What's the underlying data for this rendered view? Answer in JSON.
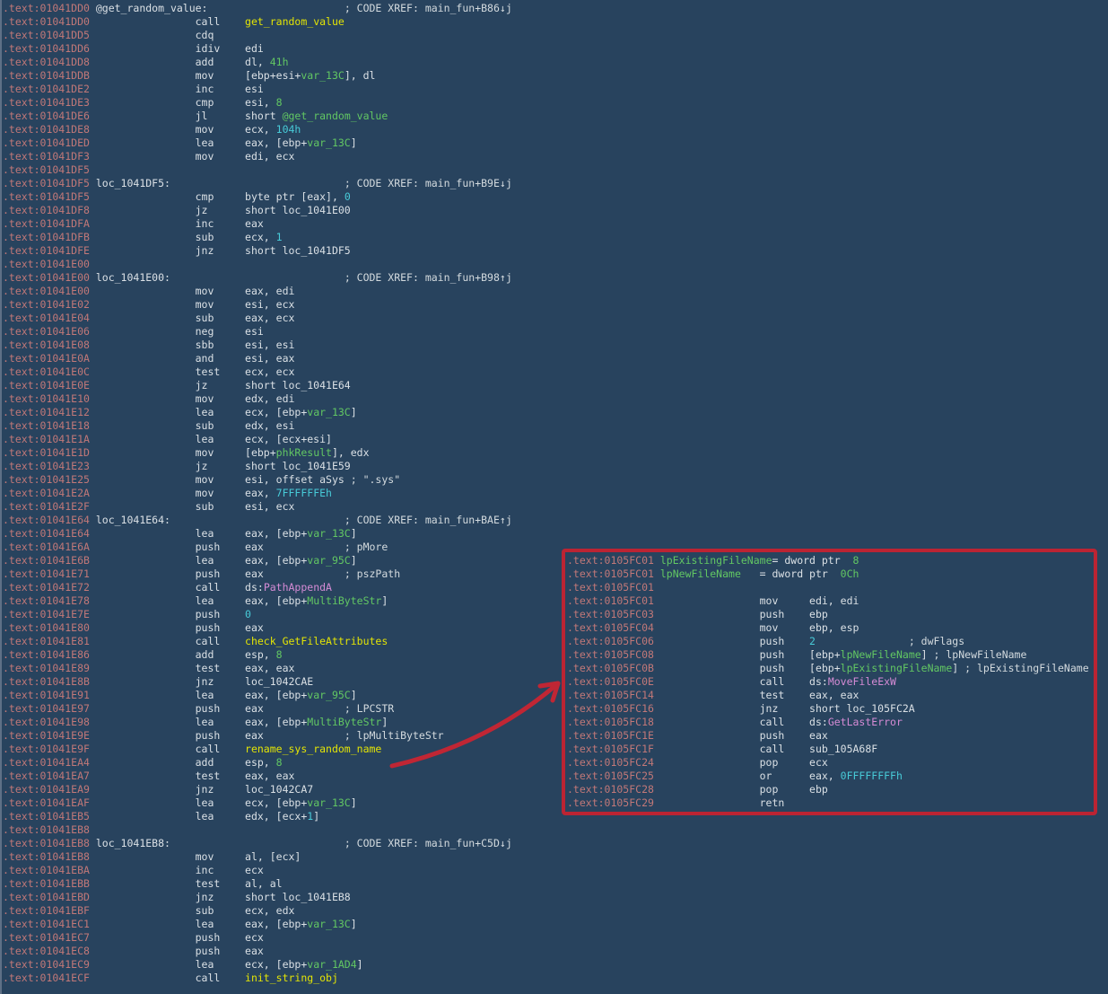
{
  "colors": {
    "background": "#28435e",
    "address": "#c17878",
    "default_text": "#dae0e5",
    "comment": "#d3dade",
    "function_name_yellow": "#e3e405",
    "local_name_green": "#62c763",
    "number_cyan": "#48cbd8",
    "import_name_pink": "#d58bd5",
    "annotation_red": "#bb2433",
    "gutter_gray": "#5e7086"
  },
  "main_listing": {
    "lines": [
      [
        [
          "a",
          ".text:01041DD0"
        ],
        [
          "d",
          " @get_random_value:                      "
        ],
        [
          "c",
          "; CODE XREF: main_fun+B86↓j"
        ]
      ],
      [
        [
          "a",
          ".text:01041DD0"
        ],
        [
          "d",
          "                 call    "
        ],
        [
          "y",
          "get_random_value"
        ]
      ],
      [
        [
          "a",
          ".text:01041DD5"
        ],
        [
          "d",
          "                 cdq"
        ]
      ],
      [
        [
          "a",
          ".text:01041DD6"
        ],
        [
          "d",
          "                 idiv    edi"
        ]
      ],
      [
        [
          "a",
          ".text:01041DD8"
        ],
        [
          "d",
          "                 add     dl, "
        ],
        [
          "g",
          "41h"
        ]
      ],
      [
        [
          "a",
          ".text:01041DDB"
        ],
        [
          "d",
          "                 mov     [ebp+esi+"
        ],
        [
          "g",
          "var_13C"
        ],
        [
          "d",
          "], dl"
        ]
      ],
      [
        [
          "a",
          ".text:01041DE2"
        ],
        [
          "d",
          "                 inc     esi"
        ]
      ],
      [
        [
          "a",
          ".text:01041DE3"
        ],
        [
          "d",
          "                 cmp     esi, "
        ],
        [
          "g",
          "8"
        ]
      ],
      [
        [
          "a",
          ".text:01041DE6"
        ],
        [
          "d",
          "                 jl      short "
        ],
        [
          "g",
          "@get_random_value"
        ]
      ],
      [
        [
          "a",
          ".text:01041DE8"
        ],
        [
          "d",
          "                 mov     ecx, "
        ],
        [
          "n",
          "104h"
        ]
      ],
      [
        [
          "a",
          ".text:01041DED"
        ],
        [
          "d",
          "                 lea     eax, [ebp+"
        ],
        [
          "g",
          "var_13C"
        ],
        [
          "d",
          "]"
        ]
      ],
      [
        [
          "a",
          ".text:01041DF3"
        ],
        [
          "d",
          "                 mov     edi, ecx"
        ]
      ],
      [
        [
          "a",
          ".text:01041DF5"
        ]
      ],
      [
        [
          "a",
          ".text:01041DF5"
        ],
        [
          "d",
          " loc_1041DF5:                            "
        ],
        [
          "c",
          "; CODE XREF: main_fun+B9E↓j"
        ]
      ],
      [
        [
          "a",
          ".text:01041DF5"
        ],
        [
          "d",
          "                 cmp     byte ptr [eax], "
        ],
        [
          "n",
          "0"
        ]
      ],
      [
        [
          "a",
          ".text:01041DF8"
        ],
        [
          "d",
          "                 jz      short loc_1041E00"
        ]
      ],
      [
        [
          "a",
          ".text:01041DFA"
        ],
        [
          "d",
          "                 inc     eax"
        ]
      ],
      [
        [
          "a",
          ".text:01041DFB"
        ],
        [
          "d",
          "                 sub     ecx, "
        ],
        [
          "n",
          "1"
        ]
      ],
      [
        [
          "a",
          ".text:01041DFE"
        ],
        [
          "d",
          "                 jnz     short loc_1041DF5"
        ]
      ],
      [
        [
          "a",
          ".text:01041E00"
        ]
      ],
      [
        [
          "a",
          ".text:01041E00"
        ],
        [
          "d",
          " loc_1041E00:                            "
        ],
        [
          "c",
          "; CODE XREF: main_fun+B98↑j"
        ]
      ],
      [
        [
          "a",
          ".text:01041E00"
        ],
        [
          "d",
          "                 mov     eax, edi"
        ]
      ],
      [
        [
          "a",
          ".text:01041E02"
        ],
        [
          "d",
          "                 mov     esi, ecx"
        ]
      ],
      [
        [
          "a",
          ".text:01041E04"
        ],
        [
          "d",
          "                 sub     eax, ecx"
        ]
      ],
      [
        [
          "a",
          ".text:01041E06"
        ],
        [
          "d",
          "                 neg     esi"
        ]
      ],
      [
        [
          "a",
          ".text:01041E08"
        ],
        [
          "d",
          "                 sbb     esi, esi"
        ]
      ],
      [
        [
          "a",
          ".text:01041E0A"
        ],
        [
          "d",
          "                 and     esi, eax"
        ]
      ],
      [
        [
          "a",
          ".text:01041E0C"
        ],
        [
          "d",
          "                 test    ecx, ecx"
        ]
      ],
      [
        [
          "a",
          ".text:01041E0E"
        ],
        [
          "d",
          "                 jz      short loc_1041E64"
        ]
      ],
      [
        [
          "a",
          ".text:01041E10"
        ],
        [
          "d",
          "                 mov     edx, edi"
        ]
      ],
      [
        [
          "a",
          ".text:01041E12"
        ],
        [
          "d",
          "                 lea     ecx, [ebp+"
        ],
        [
          "g",
          "var_13C"
        ],
        [
          "d",
          "]"
        ]
      ],
      [
        [
          "a",
          ".text:01041E18"
        ],
        [
          "d",
          "                 sub     edx, esi"
        ]
      ],
      [
        [
          "a",
          ".text:01041E1A"
        ],
        [
          "d",
          "                 lea     ecx, [ecx+esi]"
        ]
      ],
      [
        [
          "a",
          ".text:01041E1D"
        ],
        [
          "d",
          "                 mov     [ebp+"
        ],
        [
          "g",
          "phkResult"
        ],
        [
          "d",
          "], edx"
        ]
      ],
      [
        [
          "a",
          ".text:01041E23"
        ],
        [
          "d",
          "                 jz      short loc_1041E59"
        ]
      ],
      [
        [
          "a",
          ".text:01041E25"
        ],
        [
          "d",
          "                 mov     esi, offset aSys "
        ],
        [
          "c",
          "; \".sys\""
        ]
      ],
      [
        [
          "a",
          ".text:01041E2A"
        ],
        [
          "d",
          "                 mov     eax, "
        ],
        [
          "n",
          "7FFFFFFEh"
        ]
      ],
      [
        [
          "a",
          ".text:01041E2F"
        ],
        [
          "d",
          "                 sub     esi, ecx"
        ]
      ],
      [
        [
          "a",
          ".text:01041E64"
        ],
        [
          "d",
          " loc_1041E64:                            "
        ],
        [
          "c",
          "; CODE XREF: main_fun+BAE↑j"
        ]
      ],
      [
        [
          "a",
          ".text:01041E64"
        ],
        [
          "d",
          "                 lea     eax, [ebp+"
        ],
        [
          "g",
          "var_13C"
        ],
        [
          "d",
          "]"
        ]
      ],
      [
        [
          "a",
          ".text:01041E6A"
        ],
        [
          "d",
          "                 push    eax             "
        ],
        [
          "c",
          "; pMore"
        ]
      ],
      [
        [
          "a",
          ".text:01041E6B"
        ],
        [
          "d",
          "                 lea     eax, [ebp+"
        ],
        [
          "g",
          "var_95C"
        ],
        [
          "d",
          "]"
        ]
      ],
      [
        [
          "a",
          ".text:01041E71"
        ],
        [
          "d",
          "                 push    eax             "
        ],
        [
          "c",
          "; pszPath"
        ]
      ],
      [
        [
          "a",
          ".text:01041E72"
        ],
        [
          "d",
          "                 call    ds:"
        ],
        [
          "p",
          "PathAppendA"
        ]
      ],
      [
        [
          "a",
          ".text:01041E78"
        ],
        [
          "d",
          "                 lea     eax, [ebp+"
        ],
        [
          "g",
          "MultiByteStr"
        ],
        [
          "d",
          "]"
        ]
      ],
      [
        [
          "a",
          ".text:01041E7E"
        ],
        [
          "d",
          "                 push    "
        ],
        [
          "n",
          "0"
        ]
      ],
      [
        [
          "a",
          ".text:01041E80"
        ],
        [
          "d",
          "                 push    eax"
        ]
      ],
      [
        [
          "a",
          ".text:01041E81"
        ],
        [
          "d",
          "                 call    "
        ],
        [
          "y",
          "check_GetFileAttributes"
        ]
      ],
      [
        [
          "a",
          ".text:01041E86"
        ],
        [
          "d",
          "                 add     esp, "
        ],
        [
          "g",
          "8"
        ]
      ],
      [
        [
          "a",
          ".text:01041E89"
        ],
        [
          "d",
          "                 test    eax, eax"
        ]
      ],
      [
        [
          "a",
          ".text:01041E8B"
        ],
        [
          "d",
          "                 jnz     loc_1042CAE"
        ]
      ],
      [
        [
          "a",
          ".text:01041E91"
        ],
        [
          "d",
          "                 lea     eax, [ebp+"
        ],
        [
          "g",
          "var_95C"
        ],
        [
          "d",
          "]"
        ]
      ],
      [
        [
          "a",
          ".text:01041E97"
        ],
        [
          "d",
          "                 push    eax             "
        ],
        [
          "c",
          "; LPCSTR"
        ]
      ],
      [
        [
          "a",
          ".text:01041E98"
        ],
        [
          "d",
          "                 lea     eax, [ebp+"
        ],
        [
          "g",
          "MultiByteStr"
        ],
        [
          "d",
          "]"
        ]
      ],
      [
        [
          "a",
          ".text:01041E9E"
        ],
        [
          "d",
          "                 push    eax             "
        ],
        [
          "c",
          "; lpMultiByteStr"
        ]
      ],
      [
        [
          "a",
          ".text:01041E9F"
        ],
        [
          "d",
          "                 call    "
        ],
        [
          "y",
          "rename_sys_random_name"
        ]
      ],
      [
        [
          "a",
          ".text:01041EA4"
        ],
        [
          "d",
          "                 add     esp, "
        ],
        [
          "g",
          "8"
        ]
      ],
      [
        [
          "a",
          ".text:01041EA7"
        ],
        [
          "d",
          "                 test    eax, eax"
        ]
      ],
      [
        [
          "a",
          ".text:01041EA9"
        ],
        [
          "d",
          "                 jnz     loc_1042CA7"
        ]
      ],
      [
        [
          "a",
          ".text:01041EAF"
        ],
        [
          "d",
          "                 lea     ecx, [ebp+"
        ],
        [
          "g",
          "var_13C"
        ],
        [
          "d",
          "]"
        ]
      ],
      [
        [
          "a",
          ".text:01041EB5"
        ],
        [
          "d",
          "                 lea     edx, [ecx+"
        ],
        [
          "n",
          "1"
        ],
        [
          "d",
          "]"
        ]
      ],
      [
        [
          "a",
          ".text:01041EB8"
        ]
      ],
      [
        [
          "a",
          ".text:01041EB8"
        ],
        [
          "d",
          " loc_1041EB8:                            "
        ],
        [
          "c",
          "; CODE XREF: main_fun+C5D↓j"
        ]
      ],
      [
        [
          "a",
          ".text:01041EB8"
        ],
        [
          "d",
          "                 mov     al, [ecx]"
        ]
      ],
      [
        [
          "a",
          ".text:01041EBA"
        ],
        [
          "d",
          "                 inc     ecx"
        ]
      ],
      [
        [
          "a",
          ".text:01041EBB"
        ],
        [
          "d",
          "                 test    al, al"
        ]
      ],
      [
        [
          "a",
          ".text:01041EBD"
        ],
        [
          "d",
          "                 jnz     short loc_1041EB8"
        ]
      ],
      [
        [
          "a",
          ".text:01041EBF"
        ],
        [
          "d",
          "                 sub     ecx, edx"
        ]
      ],
      [
        [
          "a",
          ".text:01041EC1"
        ],
        [
          "d",
          "                 lea     eax, [ebp+"
        ],
        [
          "g",
          "var_13C"
        ],
        [
          "d",
          "]"
        ]
      ],
      [
        [
          "a",
          ".text:01041EC7"
        ],
        [
          "d",
          "                 push    ecx"
        ]
      ],
      [
        [
          "a",
          ".text:01041EC8"
        ],
        [
          "d",
          "                 push    eax"
        ]
      ],
      [
        [
          "a",
          ".text:01041EC9"
        ],
        [
          "d",
          "                 lea     ecx, [ebp+"
        ],
        [
          "g",
          "var_1AD4"
        ],
        [
          "d",
          "]"
        ]
      ],
      [
        [
          "a",
          ".text:01041ECF"
        ],
        [
          "d",
          "                 call    "
        ],
        [
          "y",
          "init_string_obj"
        ]
      ]
    ]
  },
  "inset_listing": {
    "lines": [
      [
        [
          "a",
          ".text:0105FC01"
        ],
        [
          "d",
          " "
        ],
        [
          "g",
          "lpExistingFileName"
        ],
        [
          "d",
          "= dword ptr  "
        ],
        [
          "g",
          "8"
        ]
      ],
      [
        [
          "a",
          ".text:0105FC01"
        ],
        [
          "d",
          " "
        ],
        [
          "g",
          "lpNewFileName"
        ],
        [
          "d",
          "   = dword ptr  "
        ],
        [
          "g",
          "0Ch"
        ]
      ],
      [
        [
          "a",
          ".text:0105FC01"
        ]
      ],
      [
        [
          "a",
          ".text:0105FC01"
        ],
        [
          "d",
          "                 mov     edi, edi"
        ]
      ],
      [
        [
          "a",
          ".text:0105FC03"
        ],
        [
          "d",
          "                 push    ebp"
        ]
      ],
      [
        [
          "a",
          ".text:0105FC04"
        ],
        [
          "d",
          "                 mov     ebp, esp"
        ]
      ],
      [
        [
          "a",
          ".text:0105FC06"
        ],
        [
          "d",
          "                 push    "
        ],
        [
          "n",
          "2"
        ],
        [
          "d",
          "               "
        ],
        [
          "c",
          "; dwFlags"
        ]
      ],
      [
        [
          "a",
          ".text:0105FC08"
        ],
        [
          "d",
          "                 push    [ebp+"
        ],
        [
          "g",
          "lpNewFileName"
        ],
        [
          "d",
          "] "
        ],
        [
          "c",
          "; lpNewFileName"
        ]
      ],
      [
        [
          "a",
          ".text:0105FC0B"
        ],
        [
          "d",
          "                 push    [ebp+"
        ],
        [
          "g",
          "lpExistingFileName"
        ],
        [
          "d",
          "] "
        ],
        [
          "c",
          "; lpExistingFileName"
        ]
      ],
      [
        [
          "a",
          ".text:0105FC0E"
        ],
        [
          "d",
          "                 call    ds:"
        ],
        [
          "p",
          "MoveFileExW"
        ]
      ],
      [
        [
          "a",
          ".text:0105FC14"
        ],
        [
          "d",
          "                 test    eax, eax"
        ]
      ],
      [
        [
          "a",
          ".text:0105FC16"
        ],
        [
          "d",
          "                 jnz     short loc_105FC2A"
        ]
      ],
      [
        [
          "a",
          ".text:0105FC18"
        ],
        [
          "d",
          "                 call    ds:"
        ],
        [
          "p",
          "GetLastError"
        ]
      ],
      [
        [
          "a",
          ".text:0105FC1E"
        ],
        [
          "d",
          "                 push    eax"
        ]
      ],
      [
        [
          "a",
          ".text:0105FC1F"
        ],
        [
          "d",
          "                 call    sub_105A68F"
        ]
      ],
      [
        [
          "a",
          ".text:0105FC24"
        ],
        [
          "d",
          "                 pop     ecx"
        ]
      ],
      [
        [
          "a",
          ".text:0105FC25"
        ],
        [
          "d",
          "                 or      eax, "
        ],
        [
          "n",
          "0FFFFFFFFh"
        ]
      ],
      [
        [
          "a",
          ".text:0105FC28"
        ],
        [
          "d",
          "                 pop     ebp"
        ]
      ],
      [
        [
          "a",
          ".text:0105FC29"
        ],
        [
          "d",
          "                 retn"
        ]
      ]
    ]
  },
  "annotations": {
    "box_color": "#bb2433",
    "arrow_color": "#c02634",
    "arrow_points_from": "call rename_sys_random_name",
    "arrow_points_to": "inset disassembly of rename routine (MoveFileExW)"
  }
}
